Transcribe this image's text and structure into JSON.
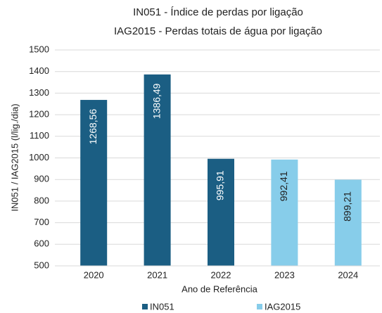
{
  "chart_data": {
    "type": "bar",
    "title": "IN051 - Índice de perdas por ligação",
    "subtitle": "IAG2015 - Perdas totais de água por ligação",
    "x_label": "Ano de Referência",
    "y_label": "IN051 / IAG2015  (l/lig./dia)",
    "categories": [
      "2020",
      "2021",
      "2022",
      "2023",
      "2024"
    ],
    "series": [
      {
        "name": "IN051",
        "color": "#1b5e83",
        "values": [
          1268.56,
          1386.49,
          995.91,
          null,
          null
        ],
        "value_labels": [
          "1268,56",
          "1386,49",
          "995,91",
          null,
          null
        ]
      },
      {
        "name": "IAG2015",
        "color": "#87cdea",
        "values": [
          null,
          null,
          null,
          992.41,
          899.21
        ],
        "value_labels": [
          null,
          null,
          null,
          "992,41",
          "899,21"
        ]
      }
    ],
    "ylim": [
      500,
      1500
    ],
    "yticks": [
      500,
      600,
      700,
      800,
      900,
      1000,
      1100,
      1200,
      1300,
      1400,
      1500
    ],
    "grid": true,
    "legend": "bottom"
  }
}
